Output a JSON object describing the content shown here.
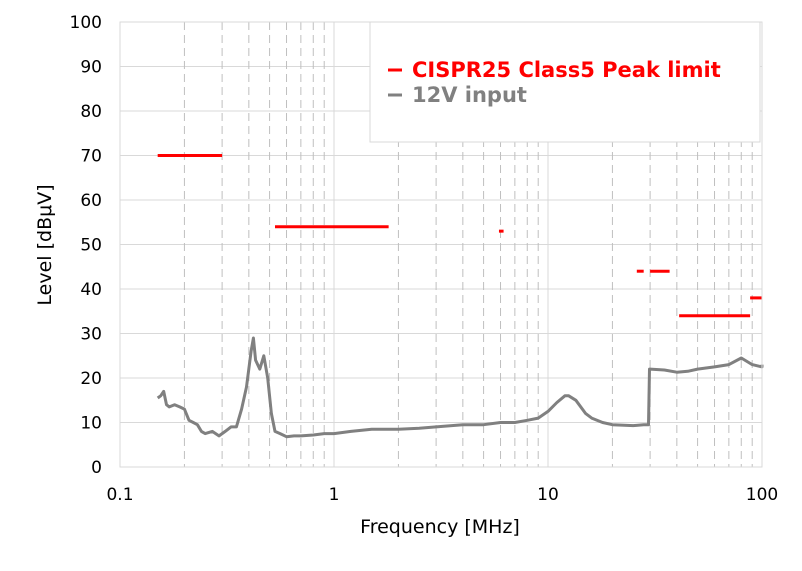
{
  "chart_data": {
    "type": "line",
    "xlabel": "Frequency [MHz]",
    "ylabel": "Level [dBμV]",
    "xscale": "log",
    "xlim": [
      0.1,
      100
    ],
    "ylim": [
      0,
      100
    ],
    "x_ticks": [
      {
        "value": 0.1,
        "label": "0.1"
      },
      {
        "value": 1,
        "label": "1"
      },
      {
        "value": 10,
        "label": "10"
      },
      {
        "value": 100,
        "label": "100"
      }
    ],
    "y_ticks": [
      {
        "value": 0,
        "label": "0"
      },
      {
        "value": 10,
        "label": "10"
      },
      {
        "value": 20,
        "label": "20"
      },
      {
        "value": 30,
        "label": "30"
      },
      {
        "value": 40,
        "label": "40"
      },
      {
        "value": 50,
        "label": "50"
      },
      {
        "value": 60,
        "label": "60"
      },
      {
        "value": 70,
        "label": "70"
      },
      {
        "value": 80,
        "label": "80"
      },
      {
        "value": 90,
        "label": "90"
      },
      {
        "value": 100,
        "label": "100"
      }
    ],
    "grid": "major and minor, dashed vertical lines at log minor ticks",
    "legend_position": "top-right",
    "series": [
      {
        "name": "CISPR25 Class5 Peak limit",
        "color": "#ff0000",
        "segments": [
          {
            "x": [
              0.15,
              0.3
            ],
            "y": 70
          },
          {
            "x": [
              0.53,
              1.8
            ],
            "y": 54
          },
          {
            "x": [
              5.9,
              6.2
            ],
            "y": 53
          },
          {
            "x": [
              26,
              28
            ],
            "y": 44
          },
          {
            "x": [
              30,
              37
            ],
            "y": 44
          },
          {
            "x": [
              41,
              88
            ],
            "y": 34
          },
          {
            "x": [
              88,
              108
            ],
            "y": 38
          }
        ]
      },
      {
        "name": "12V input",
        "color": "#808080",
        "points": [
          [
            0.15,
            15.5
          ],
          [
            0.155,
            16
          ],
          [
            0.16,
            17
          ],
          [
            0.165,
            14
          ],
          [
            0.17,
            13.5
          ],
          [
            0.18,
            14
          ],
          [
            0.19,
            13.5
          ],
          [
            0.2,
            13
          ],
          [
            0.21,
            10.5
          ],
          [
            0.22,
            10
          ],
          [
            0.23,
            9.5
          ],
          [
            0.24,
            8
          ],
          [
            0.25,
            7.5
          ],
          [
            0.27,
            8
          ],
          [
            0.29,
            7
          ],
          [
            0.31,
            8
          ],
          [
            0.33,
            9
          ],
          [
            0.35,
            9
          ],
          [
            0.37,
            13
          ],
          [
            0.39,
            18
          ],
          [
            0.41,
            26
          ],
          [
            0.42,
            29
          ],
          [
            0.43,
            24
          ],
          [
            0.45,
            22
          ],
          [
            0.47,
            25
          ],
          [
            0.49,
            20
          ],
          [
            0.51,
            12
          ],
          [
            0.53,
            8
          ],
          [
            0.56,
            7.5
          ],
          [
            0.6,
            6.8
          ],
          [
            0.65,
            7
          ],
          [
            0.7,
            7
          ],
          [
            0.8,
            7.2
          ],
          [
            0.9,
            7.5
          ],
          [
            1.0,
            7.5
          ],
          [
            1.2,
            8
          ],
          [
            1.5,
            8.5
          ],
          [
            2.0,
            8.5
          ],
          [
            2.5,
            8.7
          ],
          [
            3.0,
            9
          ],
          [
            4.0,
            9.5
          ],
          [
            5.0,
            9.5
          ],
          [
            6.0,
            10
          ],
          [
            7.0,
            10
          ],
          [
            8.0,
            10.5
          ],
          [
            9.0,
            11
          ],
          [
            10.0,
            12.5
          ],
          [
            11.0,
            14.5
          ],
          [
            12.0,
            16
          ],
          [
            12.5,
            16
          ],
          [
            13.5,
            15
          ],
          [
            15.0,
            12
          ],
          [
            16.0,
            11
          ],
          [
            18.0,
            10
          ],
          [
            20.0,
            9.5
          ],
          [
            25.0,
            9.3
          ],
          [
            28.0,
            9.5
          ],
          [
            29.5,
            9.5
          ],
          [
            29.8,
            22
          ],
          [
            30.0,
            22
          ],
          [
            35.0,
            21.8
          ],
          [
            40.0,
            21.3
          ],
          [
            45.0,
            21.5
          ],
          [
            50.0,
            22
          ],
          [
            60.0,
            22.5
          ],
          [
            70.0,
            23
          ],
          [
            80.0,
            24.5
          ],
          [
            90.0,
            23
          ],
          [
            100.0,
            22.5
          ],
          [
            105.0,
            23
          ]
        ]
      }
    ]
  }
}
